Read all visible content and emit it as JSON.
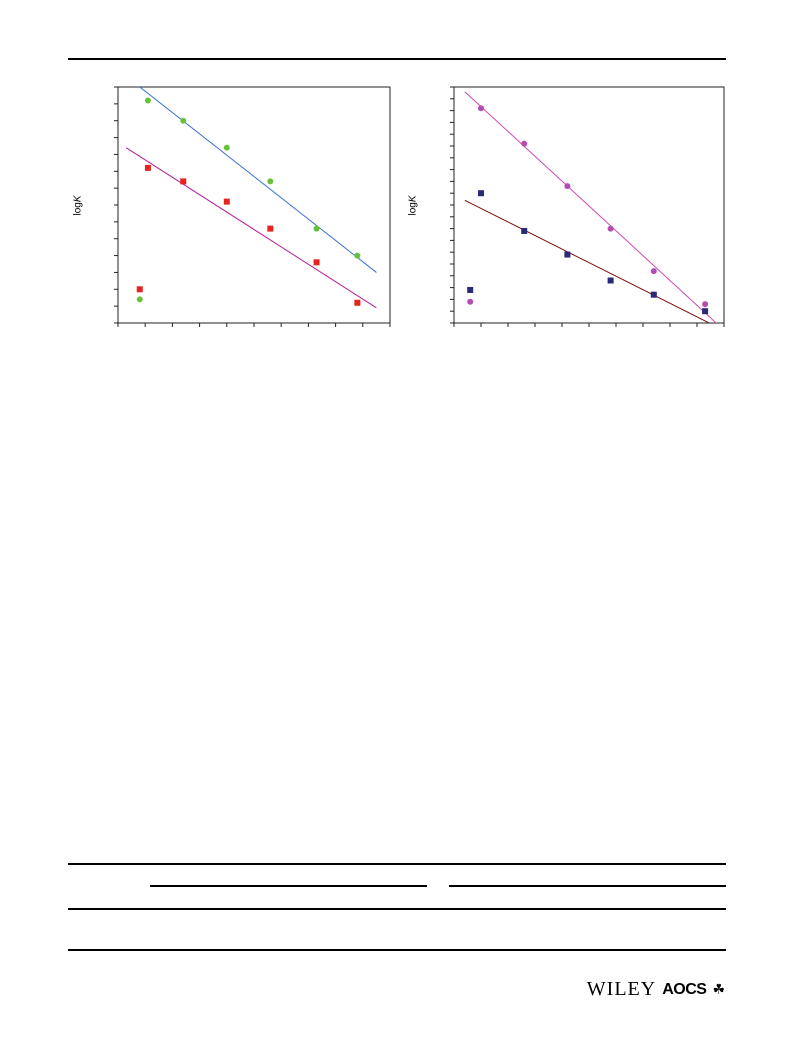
{
  "chart_data": [
    {
      "type": "scatter",
      "ylabel_prefix": "log",
      "ylabel_var": "K",
      "xlim": [
        0,
        10
      ],
      "ylim": [
        0,
        7
      ],
      "x_ticks": 10,
      "y_ticks": 14,
      "series": [
        {
          "color": "#67c23a",
          "marker": "circle",
          "points": [
            [
              1.1,
              6.6
            ],
            [
              2.4,
              6.0
            ],
            [
              4.0,
              5.2
            ],
            [
              5.6,
              4.2
            ],
            [
              7.3,
              2.8
            ],
            [
              8.8,
              2.0
            ]
          ],
          "outlier": [
            0.8,
            0.7
          ],
          "fit": {
            "x": [
              0.8,
              9.5
            ],
            "y": [
              7.0,
              1.5
            ],
            "color": "#3a6fd1"
          }
        },
        {
          "color": "#e8231f",
          "marker": "square",
          "points": [
            [
              1.1,
              4.6
            ],
            [
              2.4,
              4.2
            ],
            [
              4.0,
              3.6
            ],
            [
              5.6,
              2.8
            ],
            [
              7.3,
              1.8
            ],
            [
              8.8,
              0.6
            ]
          ],
          "outlier": [
            0.8,
            1.0
          ],
          "fit": {
            "x": [
              0.3,
              9.5
            ],
            "y": [
              5.2,
              0.45
            ],
            "color": "#b3209a"
          }
        }
      ]
    },
    {
      "type": "scatter",
      "ylabel_prefix": "log",
      "ylabel_var": "K",
      "xlim": [
        0,
        10
      ],
      "ylim": [
        0,
        10
      ],
      "x_ticks": 10,
      "y_ticks": 20,
      "series": [
        {
          "color": "#b54bb5",
          "marker": "circle",
          "points": [
            [
              1.0,
              9.1
            ],
            [
              2.6,
              7.6
            ],
            [
              4.2,
              5.8
            ],
            [
              5.8,
              4.0
            ],
            [
              7.4,
              2.2
            ],
            [
              9.3,
              0.8
            ]
          ],
          "outlier": [
            0.6,
            0.9
          ],
          "fit": {
            "x": [
              0.4,
              9.9
            ],
            "y": [
              9.8,
              -0.2
            ],
            "color": "#d14bb0"
          }
        },
        {
          "color": "#2a2a7a",
          "marker": "square",
          "points": [
            [
              1.0,
              5.5
            ],
            [
              2.6,
              3.9
            ],
            [
              4.2,
              2.9
            ],
            [
              5.8,
              1.8
            ],
            [
              7.4,
              1.2
            ],
            [
              9.3,
              0.5
            ]
          ],
          "outlier": [
            0.6,
            1.4
          ],
          "fit": {
            "x": [
              0.4,
              9.8
            ],
            "y": [
              5.2,
              -0.2
            ],
            "color": "#7a1010"
          }
        }
      ]
    }
  ],
  "footer": {
    "publisher": "WILEY",
    "society": "AOCS",
    "society_mark": "☘"
  }
}
